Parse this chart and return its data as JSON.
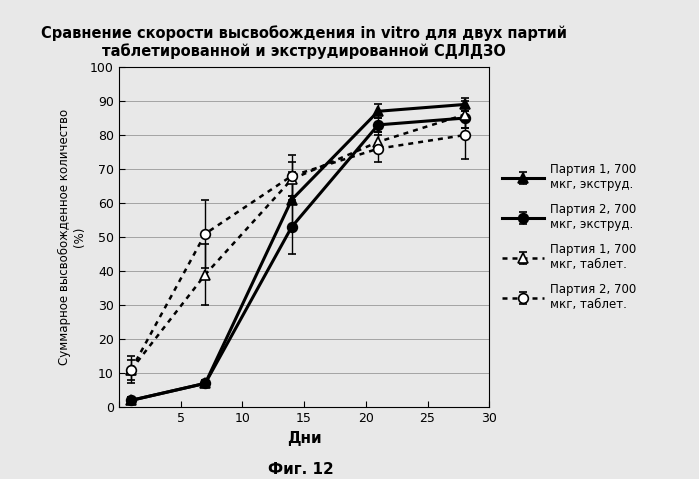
{
  "title": "Сравнение скорости высвобождения in vitro для двух партий\nтаблетированной и экструдированной СДЛДЗО",
  "xlabel": "Дни",
  "ylabel_line1": "Суммарное высвобожденное количество",
  "ylabel_line2": "(%)",
  "figcaption": "Фиг. 12",
  "xlim": [
    0,
    30
  ],
  "ylim": [
    0,
    100
  ],
  "xticks": [
    0,
    5,
    10,
    15,
    20,
    25,
    30
  ],
  "yticks": [
    0,
    10,
    20,
    30,
    40,
    50,
    60,
    70,
    80,
    90,
    100
  ],
  "series": [
    {
      "label": "Партия 1, 700\nмкг, экструд.",
      "x": [
        1,
        7,
        14,
        21,
        28
      ],
      "y": [
        2,
        7,
        61,
        87,
        89
      ],
      "yerr": [
        1,
        0.5,
        8,
        2,
        2
      ],
      "color": "black",
      "linestyle": "solid",
      "marker": "^",
      "markersize": 7,
      "linewidth": 2.2,
      "fillstyle": "full"
    },
    {
      "label": "Партия 2, 700\nмкг, экструд.",
      "x": [
        1,
        7,
        14,
        21,
        28
      ],
      "y": [
        2,
        7,
        53,
        83,
        85
      ],
      "yerr": [
        1,
        1,
        8,
        2,
        3
      ],
      "color": "black",
      "linestyle": "solid",
      "marker": "o",
      "markersize": 7,
      "linewidth": 2.2,
      "fillstyle": "full"
    },
    {
      "label": "Партия 1, 700\nмкг, таблет.",
      "x": [
        1,
        7,
        14,
        21,
        28
      ],
      "y": [
        11,
        39,
        67,
        78,
        86
      ],
      "yerr": [
        4,
        9,
        5,
        3,
        4
      ],
      "color": "black",
      "linestyle": "dotted",
      "marker": "^",
      "markersize": 7,
      "linewidth": 1.8,
      "fillstyle": "none"
    },
    {
      "label": "Партия 2, 700\nмкг, таблет.",
      "x": [
        1,
        7,
        14,
        21,
        28
      ],
      "y": [
        11,
        51,
        68,
        76,
        80
      ],
      "yerr": [
        3,
        10,
        6,
        4,
        7
      ],
      "color": "black",
      "linestyle": "dotted",
      "marker": "o",
      "markersize": 7,
      "linewidth": 1.8,
      "fillstyle": "none"
    }
  ],
  "background_color": "#e8e8e8",
  "plot_bg_color": "#e8e8e8",
  "grid_color": "#999999",
  "grid": true
}
